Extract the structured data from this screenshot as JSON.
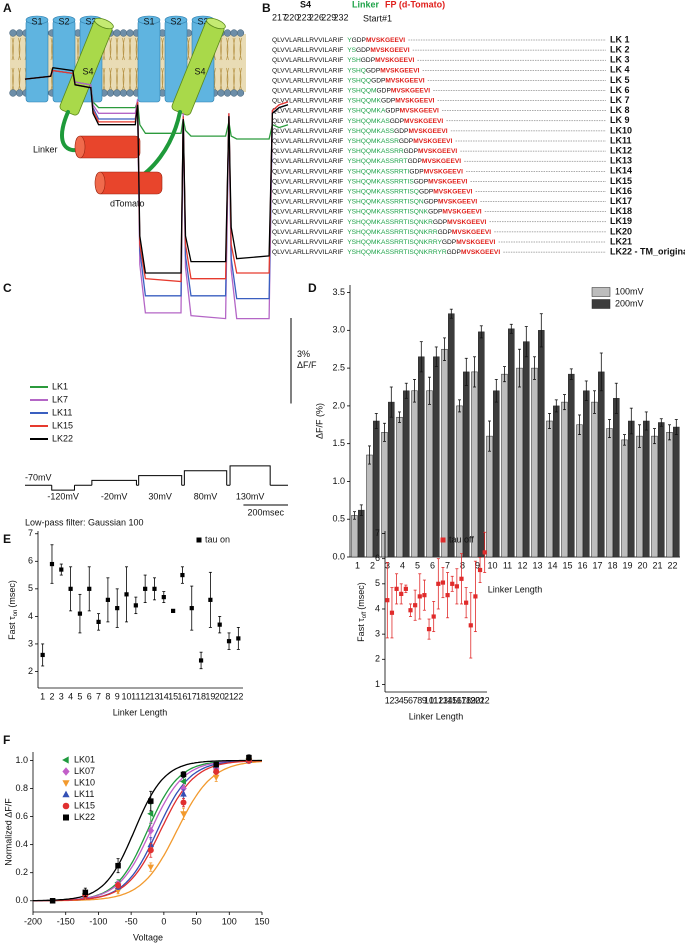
{
  "panel_a": {
    "letter": "A",
    "repeats": [
      {
        "s1": "S1",
        "s2": "S2",
        "s3": "S3",
        "s4": "S4"
      },
      {
        "s1": "S1",
        "s2": "S2",
        "s3": "S3",
        "s4": "S4"
      }
    ],
    "linker": "Linker",
    "fp": "dTomato"
  },
  "panel_b": {
    "letter": "B",
    "headers": {
      "s4": "S4",
      "linker": "Linker",
      "fp": "FP (d-Tomato)"
    },
    "residue_numbers": [
      217,
      220,
      223,
      226,
      229,
      232
    ],
    "start_label": "Start#1",
    "rows": [
      {
        "s4": "QLVVLARLLRVVILARIF",
        "linker": "Y",
        "spacer": "GDP",
        "fp": "MVSKGEEVI",
        "label": "LK 1"
      },
      {
        "s4": "QLVVLARLLRVVILARIF",
        "linker": "YS",
        "spacer": "GDP",
        "fp": "MVSKGEEVI",
        "label": "LK 2"
      },
      {
        "s4": "QLVVLARLLRVVILARIF",
        "linker": "YSH",
        "spacer": "GDP",
        "fp": "MVSKGEEVI",
        "label": "LK 3"
      },
      {
        "s4": "QLVVLARLLRVVILARIF",
        "linker": "YSHQ",
        "spacer": "GDP",
        "fp": "MVSKGEEVI",
        "label": "LK 4"
      },
      {
        "s4": "QLVVLARLLRVVILARIF",
        "linker": "YSHQQ",
        "spacer": "GDP",
        "fp": "MVSKGEEVI",
        "label": "LK 5"
      },
      {
        "s4": "QLVVLARLLRVVILARIF",
        "linker": "YSHQQM",
        "spacer": "GDP",
        "fp": "MVSKGEEVI",
        "label": "LK 6"
      },
      {
        "s4": "QLVVLARLLRVVILARIF",
        "linker": "YSHQQMK",
        "spacer": "GDP",
        "fp": "MVSKGEEVI",
        "label": "LK 7"
      },
      {
        "s4": "QLVVLARLLRVVILARIF",
        "linker": "YSHQQMKA",
        "spacer": "GDP",
        "fp": "MVSKGEEVI",
        "label": "LK 8"
      },
      {
        "s4": "QLVVLARLLRVVILARIF",
        "linker": "YSHQQMKAS",
        "spacer": "GDP",
        "fp": "MVSKGEEVI",
        "label": "LK 9"
      },
      {
        "s4": "QLVVLARLLRVVILARIF",
        "linker": "YSHQQMKASS",
        "spacer": "GDP",
        "fp": "MVSKGEEVI",
        "label": "LK10"
      },
      {
        "s4": "QLVVLARLLRVVILARIF",
        "linker": "YSHQQMKASSR",
        "spacer": "GDP",
        "fp": "MVSKGEEVI",
        "label": "LK11"
      },
      {
        "s4": "QLVVLARLLRVVILARIF",
        "linker": "YSHQQMKASSRR",
        "spacer": "GDP",
        "fp": "MVSKGEEVI",
        "label": "LK12"
      },
      {
        "s4": "QLVVLARLLRVVILARIF",
        "linker": "YSHQQMKASSRRT",
        "spacer": "GDP",
        "fp": "MVSKGEEVI",
        "label": "LK13"
      },
      {
        "s4": "QLVVLARLLRVVILARIF",
        "linker": "YSHQQMKASSRRTI",
        "spacer": "GDP",
        "fp": "MVSKGEEVI",
        "label": "LK14"
      },
      {
        "s4": "QLVVLARLLRVVILARIF",
        "linker": "YSHQQMKASSRRTIS",
        "spacer": "GDP",
        "fp": "MVSKGEEVI",
        "label": "LK15"
      },
      {
        "s4": "QLVVLARLLRVVILARIF",
        "linker": "YSHQQMKASSRRTISQ",
        "spacer": "GDP",
        "fp": "MVSKGEEVI",
        "label": "LK16"
      },
      {
        "s4": "QLVVLARLLRVVILARIF",
        "linker": "YSHQQMKASSRRTISQN",
        "spacer": "GDP",
        "fp": "MVSKGEEVI",
        "label": "LK17"
      },
      {
        "s4": "QLVVLARLLRVVILARIF",
        "linker": "YSHQQMKASSRRTISQNK",
        "spacer": "GDP",
        "fp": "MVSKGEEVI",
        "label": "LK18"
      },
      {
        "s4": "QLVVLARLLRVVILARIF",
        "linker": "YSHQQMKASSRRTISQNKR",
        "spacer": "GDP",
        "fp": "MVSKGEEVI",
        "label": "LK19"
      },
      {
        "s4": "QLVVLARLLRVVILARIF",
        "linker": "YSHQQMKASSRRTISQNKRR",
        "spacer": "GDP",
        "fp": "MVSKGEEVI",
        "label": "LK20"
      },
      {
        "s4": "QLVVLARLLRVVILARIF",
        "linker": "YSHQQMKASSRRTISQNKRRY",
        "spacer": "GDP",
        "fp": "MVSKGEEVI",
        "label": "LK21"
      },
      {
        "s4": "QLVVLARLLRVVILARIF",
        "linker": "YSHQQMKASSRRTISQNKRRYR",
        "spacer": "GDP",
        "fp": "MVSKGEEVI",
        "label": "LK22 - TM_original"
      }
    ]
  },
  "chart_data": [
    {
      "panel": "C",
      "type": "line",
      "x": [
        0,
        115,
        125,
        215,
        225,
        295,
        305,
        330,
        495,
        505,
        515,
        540,
        700,
        710,
        720,
        745,
        900,
        915,
        925,
        950,
        1095,
        1110,
        1140,
        1180
      ],
      "xlim": [
        0,
        1180
      ],
      "ylim": [
        -8.8,
        0.6
      ],
      "series": [
        {
          "name": "LK1",
          "color": "#2b9a3c",
          "values": [
            0,
            0.1,
            0.3,
            0.2,
            -0.1,
            -0.2,
            -0.8,
            -1.0,
            -1.0,
            -0.8,
            -1.6,
            -1.9,
            -1.9,
            -1.4,
            -1.8,
            -2.0,
            -2.0,
            -1.5,
            -2.0,
            -2.1,
            -2.1,
            -1.6,
            -1.7,
            -1.6
          ]
        },
        {
          "name": "LK7",
          "color": "#b466c6",
          "values": [
            0,
            0.1,
            0.3,
            0.2,
            -0.1,
            -0.2,
            -0.9,
            -1.2,
            -1.2,
            -0.7,
            -6.5,
            -8.2,
            -8.2,
            -1.2,
            -6.6,
            -8.3,
            -8.4,
            -1.2,
            -6.7,
            -8.4,
            -8.4,
            -1.1,
            -0.9,
            -0.8
          ]
        },
        {
          "name": "LK11",
          "color": "#3a5fc0",
          "values": [
            0,
            0.1,
            0.3,
            0.2,
            -0.2,
            -0.3,
            -1.0,
            -1.4,
            -1.4,
            -0.8,
            -6.0,
            -7.6,
            -7.6,
            -1.3,
            -6.2,
            -7.6,
            -7.6,
            -1.3,
            -6.3,
            -7.7,
            -7.7,
            -1.2,
            -1.0,
            -0.9
          ]
        },
        {
          "name": "LK15",
          "color": "#e63a2e",
          "values": [
            0,
            0.1,
            0.3,
            0.2,
            -0.2,
            -0.3,
            -1.1,
            -1.5,
            -1.5,
            -0.8,
            -5.8,
            -7.0,
            -7.1,
            -1.3,
            -5.8,
            -7.0,
            -7.0,
            -1.2,
            -5.8,
            -6.8,
            -6.8,
            -1.1,
            -0.9,
            -0.8
          ]
        },
        {
          "name": "LK22",
          "color": "#000000",
          "values": [
            0,
            0.1,
            0.4,
            0.3,
            -0.2,
            -0.3,
            -1.2,
            -1.6,
            -1.6,
            -0.9,
            -5.5,
            -6.8,
            -6.8,
            -1.4,
            -5.5,
            -6.4,
            -6.4,
            -1.3,
            -5.2,
            -6.3,
            -6.2,
            -1.2,
            -1.0,
            -0.9
          ]
        }
      ],
      "y_scale_bar": {
        "value": 3,
        "label": "3%"
      },
      "y_scale_bar_unit": "ΔF/F",
      "x_scale_bar": {
        "value": 200,
        "label": "200msec"
      },
      "protocol": {
        "vlim": [
          -140,
          150
        ],
        "baseline": {
          "value": -70,
          "label": "-70mV"
        },
        "steps": [
          {
            "value": -120,
            "label": "-120mV",
            "start": 120,
            "end": 222
          },
          {
            "value": -20,
            "label": "-20mV",
            "start": 300,
            "end": 500
          },
          {
            "value": 30,
            "label": "30mV",
            "start": 510,
            "end": 703
          },
          {
            "value": 80,
            "label": "80mV",
            "start": 715,
            "end": 905
          },
          {
            "value": 130,
            "label": "130mV",
            "start": 920,
            "end": 1100
          }
        ]
      },
      "footnote": "Low-pass filter: Gaussian 100",
      "legend": "left"
    },
    {
      "panel": "D",
      "type": "bar",
      "categories": [
        "1",
        "2",
        "3",
        "4",
        "5",
        "6",
        "7",
        "8",
        "9",
        "10",
        "11",
        "12",
        "13",
        "14",
        "15",
        "16",
        "17",
        "18",
        "19",
        "20",
        "21",
        "22"
      ],
      "series": [
        {
          "name": "100mV",
          "color": "#bdbdbd",
          "values": [
            0.55,
            1.35,
            1.65,
            1.85,
            2.2,
            2.2,
            2.75,
            2.0,
            2.45,
            1.6,
            2.42,
            2.5,
            2.5,
            1.8,
            2.05,
            1.75,
            2.05,
            1.7,
            1.55,
            1.6,
            1.6,
            1.65
          ],
          "errors": [
            0.05,
            0.12,
            0.12,
            0.07,
            0.15,
            0.18,
            0.15,
            0.08,
            0.2,
            0.2,
            0.1,
            0.25,
            0.15,
            0.1,
            0.1,
            0.13,
            0.15,
            0.12,
            0.07,
            0.15,
            0.1,
            0.1
          ]
        },
        {
          "name": "200mV",
          "color": "#3c3c3c",
          "values": [
            0.62,
            1.8,
            2.05,
            2.2,
            2.65,
            2.65,
            3.22,
            2.45,
            2.98,
            2.2,
            3.02,
            2.85,
            3.0,
            2.0,
            2.42,
            2.2,
            2.45,
            2.1,
            1.8,
            1.8,
            1.78,
            1.72
          ],
          "errors": [
            0.07,
            0.1,
            0.2,
            0.1,
            0.2,
            0.13,
            0.06,
            0.18,
            0.08,
            0.15,
            0.06,
            0.2,
            0.22,
            0.08,
            0.07,
            0.13,
            0.25,
            0.2,
            0.17,
            0.12,
            0.05,
            0.1
          ]
        }
      ],
      "ylim": [
        0,
        3.6
      ],
      "yticks": [
        {
          "value": 0,
          "label": "0.0"
        },
        0.5,
        {
          "value": 1,
          "label": "1.0"
        },
        1.5,
        {
          "value": 2,
          "label": "2.0"
        },
        2.5,
        {
          "value": 3,
          "label": "3.0"
        },
        3.5
      ],
      "ylabel": "ΔF/F (%)",
      "xlabel": "Linker Length",
      "legend": "top-right"
    },
    {
      "panel": "E",
      "type": "scatter",
      "categories": [
        "1",
        "2",
        "3",
        "4",
        "5",
        "6",
        "7",
        "8",
        "9",
        "10",
        "11",
        "12",
        "13",
        "14",
        "15",
        "16",
        "17",
        "18",
        "19",
        "20",
        "21",
        "22"
      ],
      "series": [
        {
          "name": "tau on",
          "color": "#000000",
          "marker": "square",
          "values": [
            2.6,
            5.9,
            5.7,
            5.0,
            4.1,
            5.0,
            3.8,
            4.6,
            4.3,
            4.8,
            4.4,
            5.0,
            5.0,
            4.7,
            4.2,
            5.5,
            4.3,
            2.4,
            4.6,
            3.7,
            3.1,
            3.2
          ],
          "errors": [
            0.4,
            0.7,
            0.2,
            0.8,
            0.7,
            0.8,
            0.3,
            0.8,
            0.7,
            1.0,
            0.3,
            0.5,
            0.4,
            0.2,
            0.05,
            0.3,
            0.8,
            0.3,
            1.0,
            0.3,
            0.3,
            0.4
          ]
        }
      ],
      "ylim": [
        1.4,
        7.1
      ],
      "yticks": [
        2,
        3,
        4,
        5,
        6,
        7
      ],
      "ylabel": [
        "Fast τ",
        "on",
        "(msec)"
      ],
      "xlabel": "Linker Length",
      "legend": "top-right"
    },
    {
      "type": "scatter",
      "categories": [
        "1",
        "2",
        "3",
        "4",
        "5",
        "6",
        "7",
        "8",
        "9",
        "10",
        "11",
        "12",
        "13",
        "14",
        "15",
        "16",
        "17",
        "18",
        "19",
        "20",
        "21",
        "22"
      ],
      "series": [
        {
          "name": "tau off",
          "color": "#e02b2b",
          "marker": "square",
          "values": [
            4.35,
            3.85,
            4.8,
            4.6,
            4.8,
            3.95,
            4.15,
            4.5,
            4.55,
            3.2,
            3.7,
            5.0,
            5.05,
            4.55,
            5.0,
            4.9,
            5.2,
            4.25,
            3.35,
            4.5,
            5.55,
            6.25
          ],
          "errors": [
            1.5,
            1.0,
            0.6,
            0.4,
            0.15,
            0.25,
            0.6,
            0.9,
            0.6,
            0.4,
            0.6,
            1.0,
            0.6,
            0.9,
            0.3,
            0.7,
            1.0,
            0.6,
            1.3,
            1.4,
            0.5,
            0.8
          ]
        }
      ],
      "ylim": [
        0.7,
        7.1
      ],
      "yticks": [
        1,
        2,
        3,
        4,
        5,
        6,
        7
      ],
      "ylabel": [
        "Fast τ",
        "off",
        "(msec)"
      ],
      "xlabel": "Linker Length",
      "legend": "top-right"
    },
    {
      "panel": "F",
      "type": "scatter",
      "x": [
        -170,
        -120,
        -70,
        -20,
        30,
        80,
        130
      ],
      "series": [
        {
          "name": "LK01",
          "color": "#1f9a3e",
          "marker": "triangle-left",
          "values": [
            null,
            0.05,
            0.13,
            0.62,
            0.85,
            0.95,
            1.01
          ],
          "errors": [
            null,
            0.02,
            0.02,
            0.07,
            0.03,
            0.02,
            0.02
          ],
          "fit_v_half": -25,
          "fit_slope": 24
        },
        {
          "name": "LK07",
          "color": "#c25fc9",
          "marker": "diamond",
          "values": [
            null,
            0.04,
            0.12,
            0.5,
            0.8,
            0.94,
            1.0
          ],
          "errors": [
            null,
            0.02,
            0.02,
            0.06,
            0.03,
            0.02,
            0.02
          ],
          "fit_v_half": -20,
          "fit_slope": 25
        },
        {
          "name": "LK10",
          "color": "#f29a2e",
          "marker": "triangle-down",
          "values": [
            null,
            0.03,
            0.07,
            0.24,
            0.62,
            0.88,
            1.0
          ],
          "errors": [
            null,
            0.01,
            0.02,
            0.03,
            0.04,
            0.03,
            0.02
          ],
          "fit_v_half": 20,
          "fit_slope": 27
        },
        {
          "name": "LK11",
          "color": "#3350b5",
          "marker": "triangle-up",
          "values": [
            null,
            0.04,
            0.1,
            0.4,
            0.76,
            0.93,
            1.0
          ],
          "errors": [
            null,
            0.02,
            0.02,
            0.05,
            0.03,
            0.02,
            0.02
          ],
          "fit_v_half": -10,
          "fit_slope": 25
        },
        {
          "name": "LK15",
          "color": "#e03030",
          "marker": "circle",
          "values": [
            null,
            0.04,
            0.11,
            0.36,
            0.7,
            0.92,
            1.0
          ],
          "errors": [
            null,
            0.02,
            0.02,
            0.05,
            0.03,
            0.02,
            0.02
          ],
          "fit_v_half": -5,
          "fit_slope": 26
        },
        {
          "name": "LK22",
          "color": "#000000",
          "marker": "square",
          "values": [
            0.0,
            0.06,
            0.25,
            0.71,
            0.9,
            0.97,
            1.02
          ],
          "errors": [
            0.01,
            0.03,
            0.05,
            0.07,
            0.02,
            0.01,
            0.02
          ],
          "fit_v_half": -45,
          "fit_slope": 23
        }
      ],
      "xlim": [
        -200,
        150
      ],
      "xticks": [
        -200,
        -150,
        -100,
        -50,
        0,
        50,
        100,
        150
      ],
      "ylim": [
        -0.08,
        1.06
      ],
      "yticks": [
        {
          "value": 0,
          "label": "0.0"
        },
        0.2,
        0.4,
        0.6,
        0.8,
        {
          "value": 1,
          "label": "1.0"
        }
      ],
      "xlabel": "Voltage",
      "ylabel": "Normalized ΔF/F",
      "legend": "top-left"
    }
  ]
}
